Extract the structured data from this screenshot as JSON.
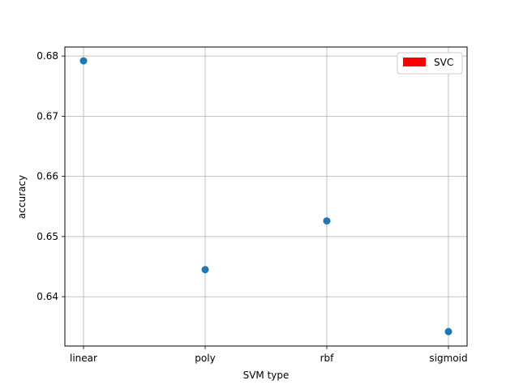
{
  "chart_data": {
    "type": "scatter",
    "categories": [
      "linear",
      "poly",
      "rbf",
      "sigmoid"
    ],
    "series": [
      {
        "values": [
          0.6792,
          0.6445,
          0.6526,
          0.6342
        ],
        "color": "#1f77b4"
      }
    ],
    "xlabel": "SVM type",
    "ylabel": "accuracy",
    "ylim": [
      0.6318,
      0.6815
    ],
    "yticks": [
      0.64,
      0.65,
      0.66,
      0.67,
      0.68
    ],
    "ytick_labels": [
      "0.64",
      "0.65",
      "0.66",
      "0.67",
      "0.68"
    ],
    "grid": true,
    "legend": {
      "position": "top-right",
      "entries": [
        {
          "label": "SVC",
          "color": "#ff0000"
        }
      ]
    }
  }
}
